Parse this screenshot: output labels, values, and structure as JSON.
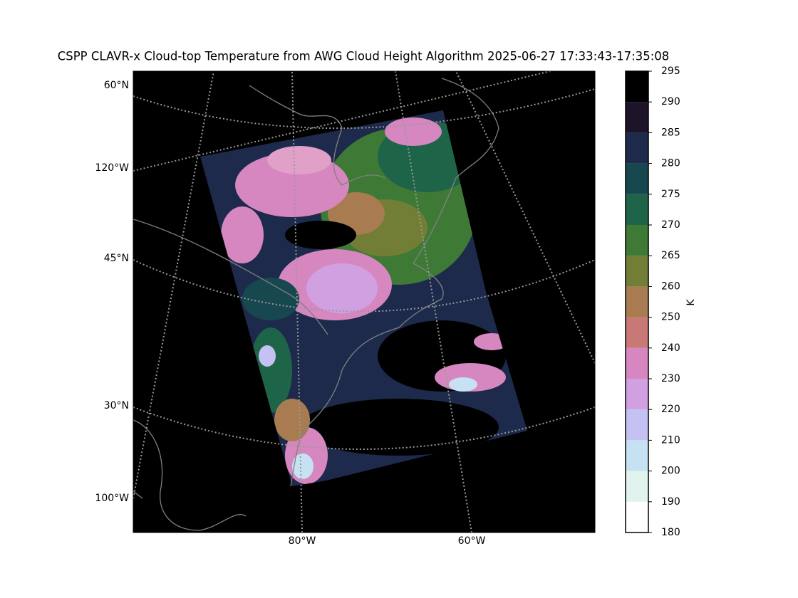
{
  "title": "CSPP CLAVR-x Cloud-top Temperature from AWG Cloud Height Algorithm 2025-06-27 17:33:43-17:35:08",
  "map": {
    "left_labels": [
      "60°N",
      "120°W",
      "45°N",
      "30°N",
      "100°W"
    ],
    "bottom_labels": [
      "80°W",
      "60°W"
    ]
  },
  "colorbar": {
    "label": "K",
    "ticks": [
      180,
      190,
      200,
      210,
      220,
      230,
      240,
      250,
      260,
      265,
      270,
      275,
      280,
      285,
      290,
      295
    ],
    "colors": [
      "#ffffff",
      "#e0f3ee",
      "#c6e2f2",
      "#c4c2f2",
      "#d0a0e0",
      "#d687c0",
      "#c97878",
      "#a87c50",
      "#727d36",
      "#3e7a35",
      "#1e6448",
      "#18484f",
      "#1d2a4b",
      "#1d1429",
      "#000000"
    ]
  }
}
